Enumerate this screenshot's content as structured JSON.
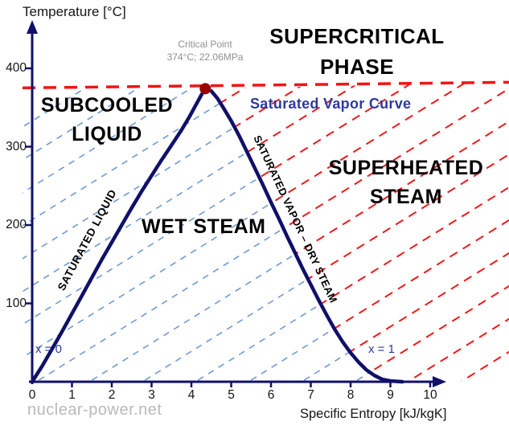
{
  "watermark": "nuclear-power.net",
  "chart_data": {
    "type": "line",
    "xlabel": "Specific Entropy [kJ/kgK]",
    "ylabel": "Temperature [°C]",
    "xlim": [
      0,
      10.5
    ],
    "ylim": [
      0,
      460
    ],
    "x_ticks": [
      0,
      1,
      2,
      3,
      4,
      5,
      6,
      7,
      8,
      9,
      10
    ],
    "y_ticks": [
      100,
      200,
      300,
      400
    ],
    "grid": false,
    "critical_point": {
      "s": 4.35,
      "T": 374,
      "label": "Critical Point",
      "value": "374°C; 22.06MPa"
    },
    "critical_line_temperature": 374,
    "series": [
      {
        "name": "saturation-dome",
        "points": [
          [
            0,
            0
          ],
          [
            0.25,
            20
          ],
          [
            0.5,
            42
          ],
          [
            0.75,
            64
          ],
          [
            1.0,
            87
          ],
          [
            1.25,
            110
          ],
          [
            1.5,
            133
          ],
          [
            1.75,
            156
          ],
          [
            2.0,
            178
          ],
          [
            2.25,
            200
          ],
          [
            2.5,
            222
          ],
          [
            2.75,
            243
          ],
          [
            3.0,
            263
          ],
          [
            3.25,
            283
          ],
          [
            3.5,
            302
          ],
          [
            3.75,
            321
          ],
          [
            3.95,
            338
          ],
          [
            4.1,
            352
          ],
          [
            4.25,
            366
          ],
          [
            4.35,
            374
          ],
          [
            4.5,
            371
          ],
          [
            4.65,
            362
          ],
          [
            4.8,
            350
          ],
          [
            5.0,
            333
          ],
          [
            5.2,
            314
          ],
          [
            5.4,
            293
          ],
          [
            5.6,
            272
          ],
          [
            5.8,
            251
          ],
          [
            6.0,
            229
          ],
          [
            6.2,
            208
          ],
          [
            6.4,
            186
          ],
          [
            6.6,
            165
          ],
          [
            6.8,
            144
          ],
          [
            7.0,
            124
          ],
          [
            7.2,
            104
          ],
          [
            7.4,
            85
          ],
          [
            7.6,
            67
          ],
          [
            7.8,
            51
          ],
          [
            8.0,
            37
          ],
          [
            8.2,
            25
          ],
          [
            8.4,
            15
          ],
          [
            8.6,
            8
          ],
          [
            8.8,
            3
          ],
          [
            9.0,
            1
          ],
          [
            9.3,
            0
          ]
        ]
      }
    ],
    "region_labels": {
      "supercritical": "SUPERCRITICAL PHASE",
      "subcooled": "SUBCOOLED LIQUID",
      "wet": "WET STEAM",
      "superheated": "SUPERHEATED STEAM"
    },
    "curve_labels": {
      "left": "SATURATED LIQUID",
      "right": "SATURATED VAPOR – DRY STEAM",
      "vapor_curve": "Saturated Vapor Curve"
    },
    "quality": {
      "x0": "x = 0",
      "x1": "x = 1"
    },
    "colors": {
      "curve": "#10106a",
      "axis": "#10106a",
      "critical_line": "#f31414",
      "critical_point": "#990000",
      "wet_hatch": "#6f9bd1",
      "superheat_hatch": "#ee1a1a"
    }
  }
}
